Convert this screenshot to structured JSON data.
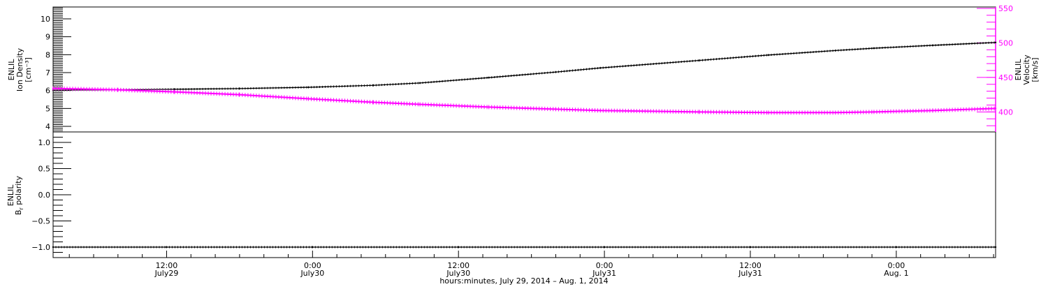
{
  "chart_data": [
    {
      "type": "line",
      "panel": "top",
      "grid": false,
      "left_axis": {
        "lines": [
          "ENLIL",
          "Ion Density",
          "[cm⁻³]"
        ],
        "ylim": [
          3.69,
          10.66
        ],
        "ticks": [
          4,
          5,
          6,
          7,
          8,
          9,
          10
        ],
        "tick_labels": [
          "4",
          "5",
          "6",
          "7",
          "8",
          "9",
          "10"
        ],
        "color": "#000000"
      },
      "right_axis": {
        "lines": [
          "ENLIL",
          "Velocity",
          "[km/s]"
        ],
        "ylim": [
          371,
          552
        ],
        "ticks": [
          400,
          450,
          500,
          550
        ],
        "tick_labels": [
          "400",
          "450",
          "500",
          "550"
        ],
        "color": "#ff00ff"
      },
      "series": [
        {
          "axis": "left",
          "color": "#000000",
          "x": [
            "2014-07-29 02:40",
            "2014-07-29 08:00",
            "2014-07-29 12:40",
            "2014-07-29 18:00",
            "2014-07-29 23:40",
            "2014-07-30 05:00",
            "2014-07-30 08:50",
            "2014-07-30 14:30",
            "2014-07-30 20:00",
            "2014-07-30 23:40",
            "2014-07-31 07:50",
            "2014-07-31 13:30",
            "2014-07-31 19:00",
            "2014-07-31 22:10",
            "2014-08-01 03:00",
            "2014-08-01 08:10"
          ],
          "y": [
            6.02,
            6.04,
            6.07,
            6.11,
            6.18,
            6.29,
            6.42,
            6.72,
            7.03,
            7.26,
            7.68,
            7.98,
            8.23,
            8.36,
            8.52,
            8.68
          ]
        },
        {
          "axis": "right",
          "color": "#ff00ff",
          "x": [
            "2014-07-29 02:40",
            "2014-07-29 08:00",
            "2014-07-29 12:40",
            "2014-07-29 18:00",
            "2014-07-29 23:40",
            "2014-07-30 05:00",
            "2014-07-30 08:50",
            "2014-07-30 14:30",
            "2014-07-30 20:00",
            "2014-07-30 23:40",
            "2014-07-31 07:50",
            "2014-07-31 13:30",
            "2014-07-31 19:00",
            "2014-07-31 22:10",
            "2014-08-01 03:00",
            "2014-08-01 08:10"
          ],
          "y": [
            434,
            432,
            429,
            425,
            419,
            414,
            411,
            407,
            404,
            402,
            400,
            399,
            399,
            400,
            402,
            405
          ]
        }
      ]
    },
    {
      "type": "line",
      "panel": "bottom",
      "grid": false,
      "left_axis": {
        "lines": [
          "ENLIL",
          "B",
          "r",
          " polarity"
        ],
        "ylim": [
          -1.2,
          1.2
        ],
        "ticks": [
          -1.0,
          -0.5,
          0.0,
          0.5,
          1.0
        ],
        "tick_labels": [
          "−1.0",
          "−0.5",
          "0.0",
          "0.5",
          "1.0"
        ]
      },
      "series": [
        {
          "color": "#000000",
          "x": [
            "2014-07-29 02:40",
            "2014-07-29 12:00",
            "2014-07-30 00:00",
            "2014-07-30 12:00",
            "2014-07-31 00:00",
            "2014-07-31 12:00",
            "2014-08-01 00:00",
            "2014-08-01 08:10"
          ],
          "y": [
            -1,
            -1,
            -1,
            -1,
            -1,
            -1,
            -1,
            -1
          ]
        }
      ],
      "x_axis": {
        "title": "hours:minutes, July 29, 2014 – Aug.  1, 2014",
        "xlim": [
          "2014-07-29 02:40",
          "2014-08-01 08:10"
        ],
        "ticks": [
          {
            "t": "2014-07-29 12:00",
            "time": "12:00",
            "date": "July29"
          },
          {
            "t": "2014-07-30 00:00",
            "time": "0:00",
            "date": "July30"
          },
          {
            "t": "2014-07-30 12:00",
            "time": "12:00",
            "date": "July30"
          },
          {
            "t": "2014-07-31 00:00",
            "time": "0:00",
            "date": "July31"
          },
          {
            "t": "2014-07-31 12:00",
            "time": "12:00",
            "date": "July31"
          },
          {
            "t": "2014-08-01 00:00",
            "time": "0:00",
            "date": "Aug. 1"
          }
        ],
        "minor_tick_hours": 2
      }
    }
  ]
}
